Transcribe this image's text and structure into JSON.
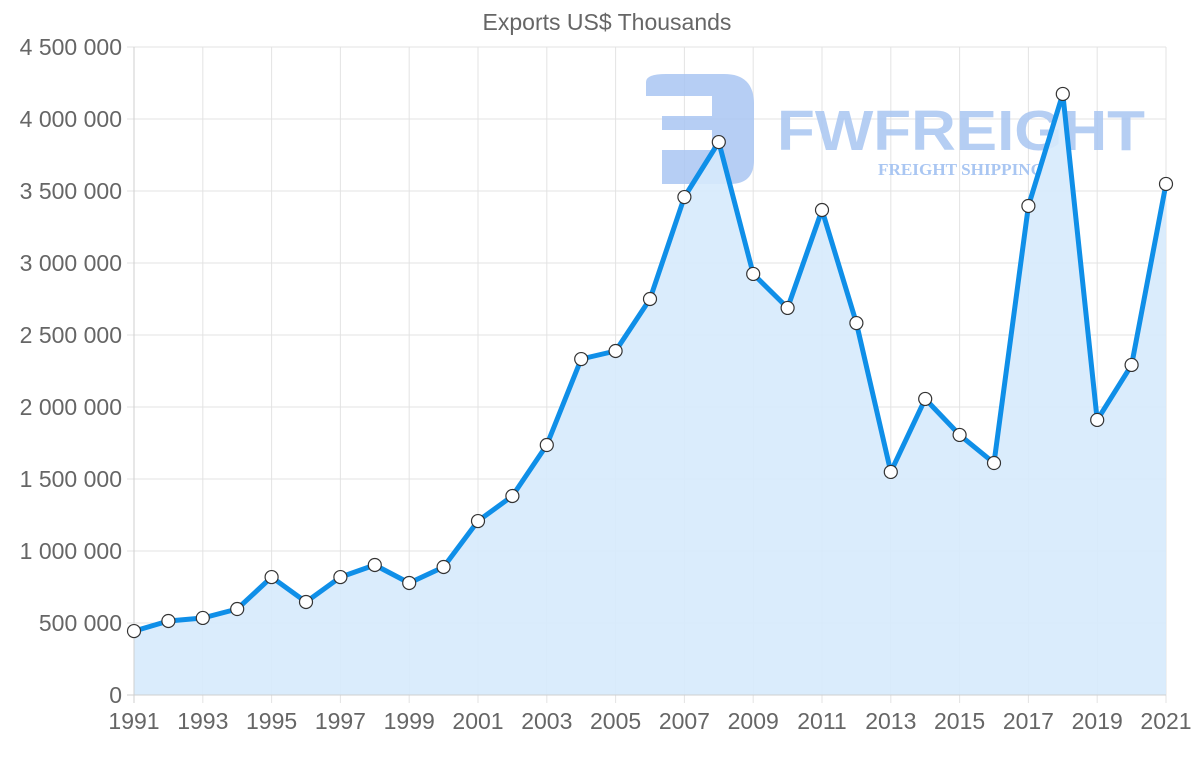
{
  "chart_data": {
    "type": "line",
    "title": "Exports US$ Thousands",
    "xlabel": "",
    "ylabel": "",
    "x": [
      1991,
      1992,
      1993,
      1994,
      1995,
      1996,
      1997,
      1998,
      1999,
      2000,
      2001,
      2002,
      2003,
      2004,
      2005,
      2006,
      2007,
      2008,
      2009,
      2010,
      2011,
      2012,
      2013,
      2014,
      2015,
      2016,
      2017,
      2018,
      2019,
      2020,
      2021
    ],
    "series": [
      {
        "name": "Exports US$ Thousands",
        "values": [
          444000,
          514000,
          535000,
          597000,
          819000,
          646000,
          819000,
          903000,
          778000,
          889000,
          1208000,
          1382000,
          1736000,
          2333000,
          2389000,
          2750000,
          3458000,
          3840000,
          2924000,
          2688000,
          3368000,
          2583000,
          1549000,
          2056000,
          1806000,
          1611000,
          3396000,
          4174000,
          1910000,
          2292000,
          3549000
        ],
        "color": "#0f8fe8",
        "fill": "#d6eafc",
        "fill_area": true,
        "markers": "circle-white"
      }
    ],
    "ylim": [
      0,
      4500000
    ],
    "yticks": [
      0,
      500000,
      1000000,
      1500000,
      2000000,
      2500000,
      3000000,
      3500000,
      4000000,
      4500000
    ],
    "ytick_labels": [
      "0",
      "500 000",
      "1 000 000",
      "1 500 000",
      "2 000 000",
      "2 500 000",
      "3 000 000",
      "3 500 000",
      "4 000 000",
      "4 500 000"
    ],
    "xtick_labels": [
      "1991",
      "1993",
      "1995",
      "1997",
      "1999",
      "2001",
      "2003",
      "2005",
      "2007",
      "2009",
      "2011",
      "2013",
      "2015",
      "2017",
      "2019",
      "2021"
    ],
    "grid": true,
    "legend": "none"
  },
  "watermark": {
    "brand": "FWFREIGHT",
    "tagline": "FREIGHT SHIPPING",
    "color": "#a9c6f2",
    "logo_icon": "fwfreight-logo-icon"
  },
  "colors": {
    "line": "#0f8fe8",
    "area": "#d6eafc",
    "grid": "#e3e3e3",
    "axis_text": "#666666",
    "marker_fill": "#ffffff",
    "marker_stroke": "#333333"
  }
}
